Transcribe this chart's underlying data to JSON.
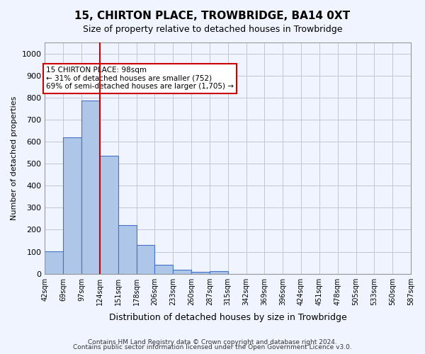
{
  "title1": "15, CHIRTON PLACE, TROWBRIDGE, BA14 0XT",
  "title2": "Size of property relative to detached houses in Trowbridge",
  "xlabel": "Distribution of detached houses by size in Trowbridge",
  "ylabel": "Number of detached properties",
  "bar_values": [
    103,
    620,
    785,
    535,
    222,
    132,
    42,
    17,
    8,
    12,
    0,
    0,
    0,
    0,
    0,
    0,
    0,
    0,
    0,
    0
  ],
  "x_labels": [
    "42sqm",
    "69sqm",
    "97sqm",
    "124sqm",
    "151sqm",
    "178sqm",
    "206sqm",
    "233sqm",
    "260sqm",
    "287sqm",
    "315sqm",
    "342sqm",
    "369sqm",
    "396sqm",
    "424sqm",
    "451sqm",
    "478sqm",
    "505sqm",
    "533sqm",
    "560sqm",
    "587sqm"
  ],
  "bar_color": "#aec6e8",
  "bar_edge_color": "#4472c4",
  "ylim": [
    0,
    1050
  ],
  "yticks": [
    0,
    100,
    200,
    300,
    400,
    500,
    600,
    700,
    800,
    900,
    1000
  ],
  "vline_x": 2,
  "vline_color": "#cc0000",
  "annotation_text": "15 CHIRTON PLACE: 98sqm\n← 31% of detached houses are smaller (752)\n69% of semi-detached houses are larger (1,705) →",
  "annotation_box_color": "#ffffff",
  "annotation_border_color": "#cc0000",
  "footer1": "Contains HM Land Registry data © Crown copyright and database right 2024.",
  "footer2": "Contains public sector information licensed under the Open Government Licence v3.0.",
  "background_color": "#f0f4ff",
  "plot_bg_color": "#f0f4ff",
  "grid_color": "#c0c8d8"
}
